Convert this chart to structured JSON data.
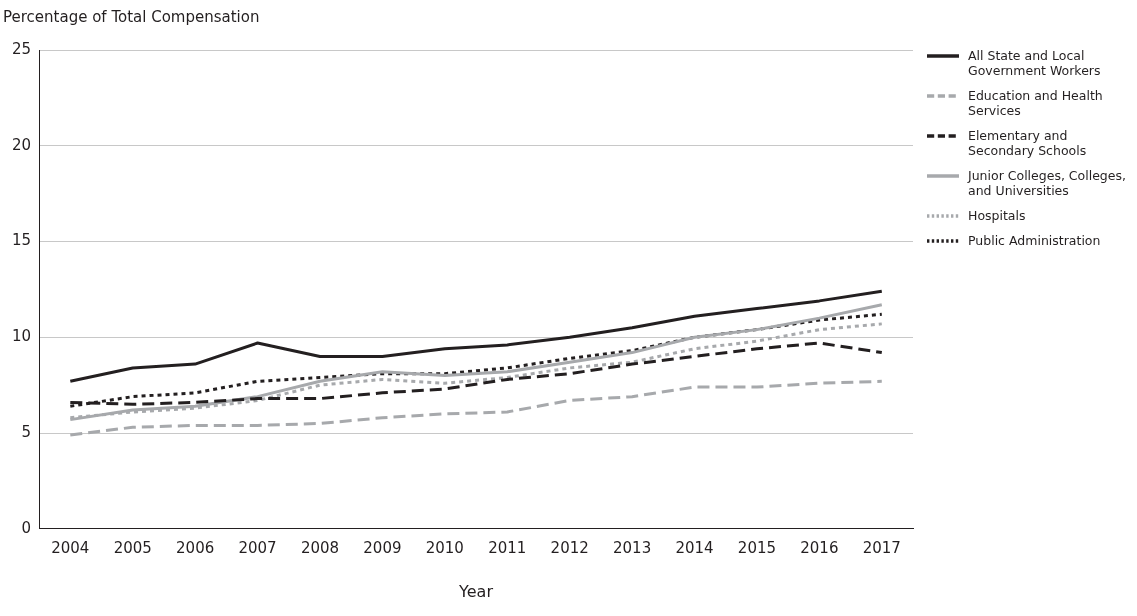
{
  "chart_data": {
    "type": "line",
    "ylabel": "Percentage of Total Compensation",
    "xlabel": "Year",
    "categories": [
      "2004",
      "2005",
      "2006",
      "2007",
      "2008",
      "2009",
      "2010",
      "2011",
      "2012",
      "2013",
      "2014",
      "2015",
      "2016",
      "2017"
    ],
    "ylim": [
      0,
      25
    ],
    "yticks": [
      0,
      5,
      10,
      15,
      20,
      25
    ],
    "grid": "y",
    "legend": "right",
    "marker": "none",
    "series": [
      {
        "name": "All State and Local Government Workers",
        "color": "#231f20",
        "line_style": "solid",
        "values": [
          7.7,
          8.4,
          8.6,
          9.7,
          9.0,
          9.0,
          9.4,
          9.6,
          10.0,
          10.5,
          11.1,
          11.5,
          11.9,
          12.4
        ]
      },
      {
        "name": "Education and Health Services",
        "color": "#a7a9ac",
        "line_style": "dashed",
        "values": [
          4.9,
          5.3,
          5.4,
          5.4,
          5.5,
          5.8,
          6.0,
          6.1,
          6.7,
          6.9,
          7.4,
          7.4,
          7.6,
          7.7
        ]
      },
      {
        "name": "Elementary and Secondary Schools",
        "color": "#231f20",
        "line_style": "dashed",
        "values": [
          6.6,
          6.5,
          6.6,
          6.8,
          6.8,
          7.1,
          7.3,
          7.8,
          8.1,
          8.6,
          9.0,
          9.4,
          9.7,
          9.2
        ]
      },
      {
        "name": "Junior Colleges, Colleges, and Universities",
        "color": "#a7a9ac",
        "line_style": "solid",
        "values": [
          5.7,
          6.2,
          6.4,
          6.9,
          7.7,
          8.2,
          8.0,
          8.2,
          8.7,
          9.2,
          10.0,
          10.4,
          11.0,
          11.7
        ]
      },
      {
        "name": "Hospitals",
        "color": "#a7a9ac",
        "line_style": "dotted",
        "values": [
          5.8,
          6.1,
          6.3,
          6.7,
          7.5,
          7.8,
          7.6,
          7.9,
          8.4,
          8.7,
          9.4,
          9.8,
          10.4,
          10.7
        ]
      },
      {
        "name": "Public Administration",
        "color": "#231f20",
        "line_style": "dotted",
        "values": [
          6.4,
          6.9,
          7.1,
          7.7,
          7.9,
          8.1,
          8.1,
          8.4,
          8.9,
          9.3,
          10.0,
          10.4,
          10.9,
          11.2
        ]
      }
    ]
  }
}
